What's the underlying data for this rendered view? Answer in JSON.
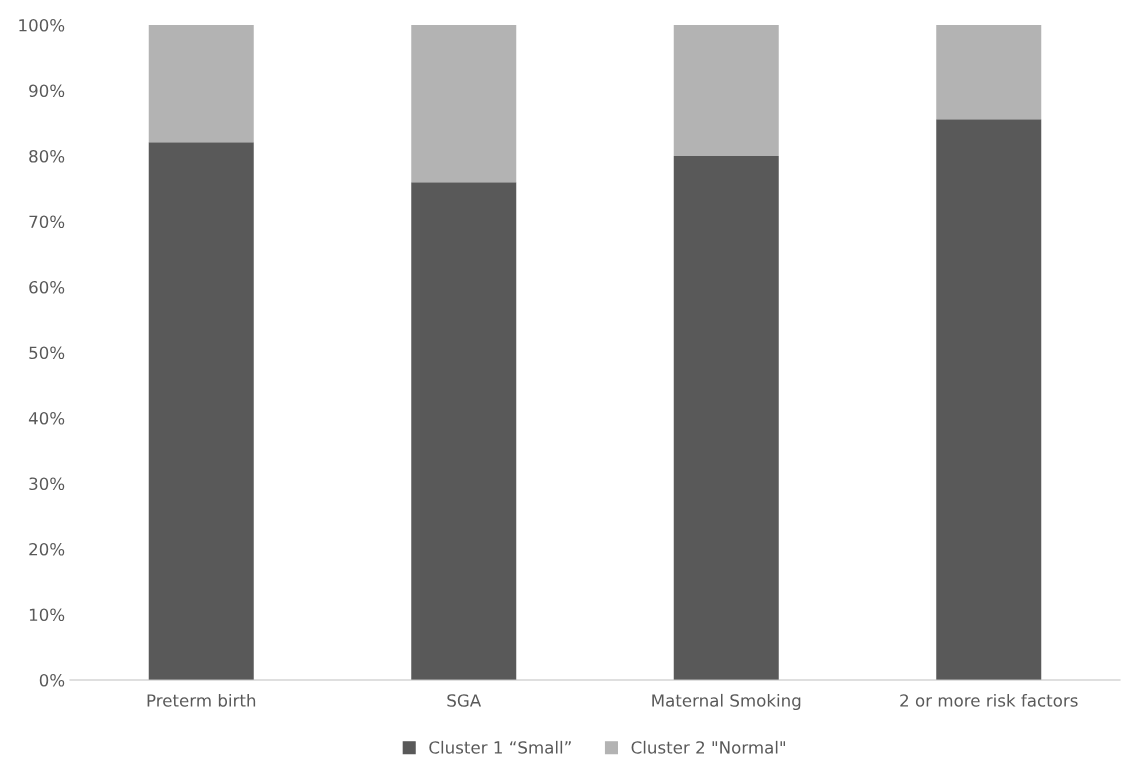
{
  "chart_data": {
    "type": "bar",
    "stacked": true,
    "categories": [
      "Preterm birth",
      "SGA",
      "Maternal Smoking",
      "2 or more risk factors"
    ],
    "series": [
      {
        "name": "Cluster 1 “Small”",
        "color": "#595959",
        "values": [
          82.1,
          76.0,
          80.0,
          85.6
        ]
      },
      {
        "name": "Cluster 2 \"Normal\"",
        "color": "#b3b3b3",
        "values": [
          17.9,
          24.0,
          20.0,
          14.4
        ]
      }
    ],
    "ylim": [
      0,
      100
    ],
    "yticks": [
      {
        "value": 0,
        "label": "0%"
      },
      {
        "value": 10,
        "label": "10%"
      },
      {
        "value": 20,
        "label": "20%"
      },
      {
        "value": 30,
        "label": "30%"
      },
      {
        "value": 40,
        "label": "40%"
      },
      {
        "value": 50,
        "label": "50%"
      },
      {
        "value": 60,
        "label": "60%"
      },
      {
        "value": 70,
        "label": "70%"
      },
      {
        "value": 80,
        "label": "80%"
      },
      {
        "value": 90,
        "label": "90%"
      },
      {
        "value": 100,
        "label": "100%"
      }
    ],
    "grid": false,
    "legend": "bottom"
  }
}
